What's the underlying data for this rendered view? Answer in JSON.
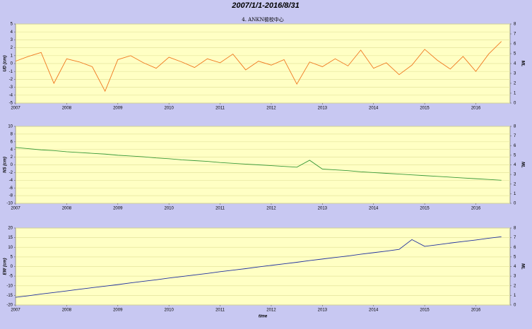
{
  "title": "2007/1/1-2016/8/31",
  "chart_data": [
    {
      "type": "line",
      "subtitle": "4. ANKN檢校中心",
      "ylabel": "UD (cm)",
      "y2label": "ML",
      "x": [
        2007,
        2007.25,
        2007.5,
        2007.75,
        2008,
        2008.25,
        2008.5,
        2008.75,
        2009,
        2009.25,
        2009.5,
        2009.75,
        2010,
        2010.25,
        2010.5,
        2010.75,
        2011,
        2011.25,
        2011.5,
        2011.75,
        2012,
        2012.25,
        2012.5,
        2012.75,
        2013,
        2013.25,
        2013.5,
        2013.75,
        2014,
        2014.25,
        2014.5,
        2014.75,
        2015,
        2015.25,
        2015.5,
        2015.75,
        2016,
        2016.25,
        2016.5
      ],
      "series": [
        {
          "color": "#f07820",
          "values": [
            0.3,
            0.9,
            1.4,
            -2.5,
            0.6,
            0.2,
            -0.4,
            -3.5,
            0.5,
            1.0,
            0.1,
            -0.6,
            0.8,
            0.2,
            -0.5,
            0.6,
            0.1,
            1.2,
            -0.8,
            0.3,
            -0.2,
            0.5,
            -2.6,
            0.2,
            -0.4,
            0.6,
            -0.3,
            1.7,
            -0.6,
            0.1,
            -1.4,
            -0.2,
            1.8,
            0.4,
            -0.7,
            0.9,
            -1.0,
            1.2,
            2.8
          ]
        }
      ],
      "xlim": [
        2007,
        2016.67
      ],
      "xticks": [
        2007,
        2008,
        2009,
        2010,
        2011,
        2012,
        2013,
        2014,
        2015,
        2016
      ],
      "ylim": [
        -5,
        5
      ],
      "yticks": [
        -5,
        -4,
        -3,
        -2,
        -1,
        0,
        1,
        2,
        3,
        4,
        5
      ],
      "y2lim": [
        0,
        8
      ],
      "y2ticks": [
        0,
        1,
        2,
        3,
        4,
        5,
        6,
        7,
        8
      ],
      "grid": true
    },
    {
      "type": "line",
      "ylabel": "NS (cm)",
      "y2label": "ML",
      "x": [
        2007,
        2007.25,
        2007.5,
        2007.75,
        2008,
        2008.25,
        2008.5,
        2008.75,
        2009,
        2009.25,
        2009.5,
        2009.75,
        2010,
        2010.25,
        2010.5,
        2010.75,
        2011,
        2011.25,
        2011.5,
        2011.75,
        2012,
        2012.25,
        2012.5,
        2012.75,
        2013,
        2013.25,
        2013.5,
        2013.75,
        2014,
        2014.25,
        2014.5,
        2014.75,
        2015,
        2015.25,
        2015.5,
        2015.75,
        2016,
        2016.25,
        2016.5
      ],
      "series": [
        {
          "color": "#3a9a3a",
          "values": [
            4.5,
            4.2,
            3.9,
            3.7,
            3.4,
            3.2,
            3.0,
            2.8,
            2.5,
            2.3,
            2.1,
            1.8,
            1.6,
            1.3,
            1.1,
            0.9,
            0.6,
            0.4,
            0.2,
            0.0,
            -0.2,
            -0.4,
            -0.6,
            1.2,
            -1.1,
            -1.3,
            -1.5,
            -1.8,
            -2.0,
            -2.2,
            -2.4,
            -2.6,
            -2.8,
            -3.0,
            -3.2,
            -3.4,
            -3.6,
            -3.8,
            -4.0
          ]
        }
      ],
      "xlim": [
        2007,
        2016.67
      ],
      "xticks": [
        2007,
        2008,
        2009,
        2010,
        2011,
        2012,
        2013,
        2014,
        2015,
        2016
      ],
      "ylim": [
        -10,
        10
      ],
      "yticks": [
        -10,
        -8,
        -6,
        -4,
        -2,
        0,
        2,
        4,
        6,
        8,
        10
      ],
      "y2lim": [
        0,
        8
      ],
      "y2ticks": [
        0,
        1,
        2,
        3,
        4,
        5,
        6,
        7,
        8
      ],
      "grid": true
    },
    {
      "type": "line",
      "ylabel": "EW (cm)",
      "y2label": "ML",
      "xlabel": "time",
      "x": [
        2007,
        2007.25,
        2007.5,
        2007.75,
        2008,
        2008.25,
        2008.5,
        2008.75,
        2009,
        2009.25,
        2009.5,
        2009.75,
        2010,
        2010.25,
        2010.5,
        2010.75,
        2011,
        2011.25,
        2011.5,
        2011.75,
        2012,
        2012.25,
        2012.5,
        2012.75,
        2013,
        2013.25,
        2013.5,
        2013.75,
        2014,
        2014.25,
        2014.5,
        2014.75,
        2015,
        2015.25,
        2015.5,
        2015.75,
        2016,
        2016.25,
        2016.5
      ],
      "series": [
        {
          "color": "#2030a0",
          "values": [
            -16,
            -15.2,
            -14.3,
            -13.5,
            -12.7,
            -11.8,
            -11.0,
            -10.2,
            -9.4,
            -8.5,
            -7.7,
            -6.9,
            -6.0,
            -5.2,
            -4.4,
            -3.6,
            -2.7,
            -1.9,
            -1.1,
            -0.2,
            0.6,
            1.4,
            2.2,
            3.1,
            3.9,
            4.7,
            5.5,
            6.4,
            7.2,
            8.0,
            8.9,
            14.0,
            10.5,
            11.3,
            12.2,
            13.0,
            13.8,
            14.7,
            15.5
          ]
        }
      ],
      "xlim": [
        2007,
        2016.67
      ],
      "xticks": [
        2007,
        2008,
        2009,
        2010,
        2011,
        2012,
        2013,
        2014,
        2015,
        2016
      ],
      "ylim": [
        -20,
        20
      ],
      "yticks": [
        -20,
        -15,
        -10,
        -5,
        0,
        5,
        10,
        15,
        20
      ],
      "y2lim": [
        0,
        8
      ],
      "y2ticks": [
        0,
        1,
        2,
        3,
        4,
        5,
        6,
        7,
        8
      ],
      "grid": true
    }
  ]
}
